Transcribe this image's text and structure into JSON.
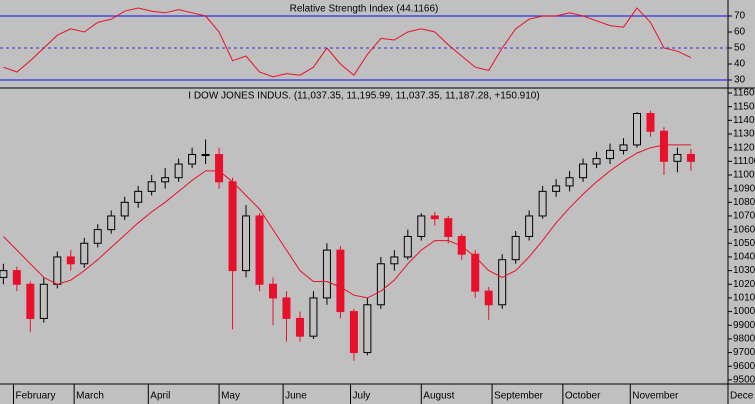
{
  "chart_data": [
    {
      "type": "line",
      "title": "Relative Strength Index (44.1166)",
      "x": [
        0,
        4,
        8,
        12,
        16,
        20,
        24,
        28,
        32,
        36,
        40,
        44,
        48,
        52,
        56,
        60,
        64,
        68,
        72,
        76,
        80,
        84,
        88,
        92,
        96,
        100,
        104,
        108,
        112,
        116,
        120,
        124,
        128,
        132,
        136,
        140,
        144,
        148,
        152,
        156,
        160,
        164,
        168,
        172,
        176,
        180,
        184,
        188,
        192,
        196,
        200,
        204
      ],
      "values": [
        38,
        35,
        42,
        50,
        58,
        62,
        60,
        66,
        68,
        73,
        75,
        73,
        72,
        74,
        72,
        70,
        60,
        42,
        45,
        35,
        32,
        34,
        33,
        38,
        50,
        40,
        33,
        46,
        56,
        55,
        60,
        62,
        60,
        52,
        45,
        38,
        36,
        50,
        62,
        68,
        70,
        70,
        72,
        70,
        67,
        64,
        63,
        75,
        66,
        50,
        48,
        44
      ],
      "color": "#e8102a",
      "level_color": "#3030e0",
      "overbought": 70,
      "oversold": 30,
      "midline": 50,
      "xlim": [
        -1,
        215
      ],
      "ylim": [
        26.25,
        78.75
      ],
      "yticks": [
        30,
        40,
        50,
        60,
        70
      ]
    },
    {
      "type": "candlestick",
      "title": "I DOW JONES INDUS. (11,037.35, 11,195.99, 11,037.35, 11,187.28, +150.910)",
      "x": [
        0,
        4,
        8,
        12,
        16,
        20,
        24,
        28,
        32,
        36,
        40,
        44,
        48,
        52,
        56,
        60,
        64,
        68,
        72,
        76,
        80,
        84,
        88,
        92,
        96,
        100,
        104,
        108,
        112,
        116,
        120,
        124,
        128,
        132,
        136,
        140,
        144,
        148,
        152,
        156,
        160,
        164,
        168,
        172,
        176,
        180,
        184,
        188,
        192,
        196,
        200,
        204
      ],
      "open": [
        10250,
        10300,
        10200,
        9950,
        10200,
        10400,
        10350,
        10500,
        10600,
        10700,
        10800,
        10880,
        10950,
        10980,
        11080,
        11150,
        11150,
        10950,
        10300,
        10700,
        10200,
        10100,
        9950,
        9820,
        10100,
        10450,
        10000,
        9700,
        10050,
        10350,
        10400,
        10550,
        10700,
        10680,
        10550,
        10420,
        10150,
        10050,
        10380,
        10550,
        10700,
        10880,
        10920,
        10980,
        11080,
        11120,
        11180,
        11220,
        11450,
        11320,
        11100,
        11150
      ],
      "high": [
        10350,
        10330,
        10220,
        10250,
        10440,
        10450,
        10540,
        10640,
        10740,
        10840,
        10920,
        11000,
        11050,
        11120,
        11200,
        11260,
        11200,
        10980,
        10780,
        10720,
        10250,
        10150,
        10000,
        10150,
        10500,
        10480,
        10020,
        10100,
        10400,
        10450,
        10600,
        10720,
        10730,
        10700,
        10570,
        10450,
        10180,
        10420,
        10590,
        10740,
        10920,
        10970,
        11030,
        11120,
        11170,
        11230,
        11270,
        11460,
        11470,
        11350,
        11200,
        11190
      ],
      "low": [
        10200,
        10150,
        9850,
        9920,
        10170,
        10300,
        10320,
        10470,
        10570,
        10670,
        10760,
        10850,
        10900,
        10950,
        11050,
        11080,
        10900,
        9870,
        10250,
        10150,
        9900,
        9780,
        9780,
        9800,
        10050,
        9950,
        9640,
        9680,
        10020,
        10300,
        10380,
        10520,
        10630,
        10500,
        10380,
        10100,
        9940,
        10020,
        10350,
        10520,
        10680,
        10840,
        10880,
        10950,
        11050,
        11080,
        11150,
        11200,
        11280,
        11000,
        11020,
        11030
      ],
      "close": [
        10300,
        10200,
        9950,
        10200,
        10400,
        10350,
        10500,
        10600,
        10700,
        10800,
        10880,
        10950,
        10980,
        11080,
        11150,
        11150,
        10950,
        10300,
        10700,
        10200,
        10100,
        9950,
        9820,
        10100,
        10450,
        10000,
        9700,
        10050,
        10350,
        10400,
        10550,
        10700,
        10680,
        10550,
        10420,
        10150,
        10050,
        10380,
        10550,
        10700,
        10880,
        10920,
        10980,
        11080,
        11120,
        11180,
        11220,
        11450,
        11320,
        11100,
        11150,
        11100
      ],
      "up_color": "#000000",
      "down_color": "#e8102a",
      "ma": {
        "color": "#e8102a",
        "values": [
          10550,
          10450,
          10350,
          10250,
          10200,
          10230,
          10300,
          10380,
          10470,
          10560,
          10650,
          10730,
          10800,
          10880,
          10960,
          11030,
          11030,
          10950,
          10850,
          10750,
          10600,
          10450,
          10300,
          10220,
          10220,
          10180,
          10120,
          10100,
          10150,
          10230,
          10350,
          10450,
          10520,
          10520,
          10480,
          10400,
          10300,
          10250,
          10300,
          10400,
          10520,
          10650,
          10760,
          10860,
          10950,
          11030,
          11100,
          11160,
          11200,
          11220,
          11220,
          11220
        ]
      },
      "xlim": [
        -1,
        215
      ],
      "xticks": [
        {
          "value": 3,
          "label": "February"
        },
        {
          "value": 21,
          "label": "March"
        },
        {
          "value": 43,
          "label": "April"
        },
        {
          "value": 64,
          "label": "May"
        },
        {
          "value": 83,
          "label": "June"
        },
        {
          "value": 103,
          "label": "July"
        },
        {
          "value": 124,
          "label": "August"
        },
        {
          "value": 145,
          "label": "September"
        },
        {
          "value": 166,
          "label": "October"
        },
        {
          "value": 186,
          "label": "November"
        },
        {
          "value": 215,
          "label": "Dece"
        }
      ],
      "ylim": [
        9470,
        11622
      ],
      "yticks": [
        9500,
        9600,
        9700,
        9800,
        9900,
        10000,
        10100,
        10200,
        10300,
        10400,
        10500,
        10600,
        10700,
        10800,
        10900,
        11000,
        11100,
        11200,
        11300,
        11400,
        11500,
        11600
      ]
    }
  ]
}
